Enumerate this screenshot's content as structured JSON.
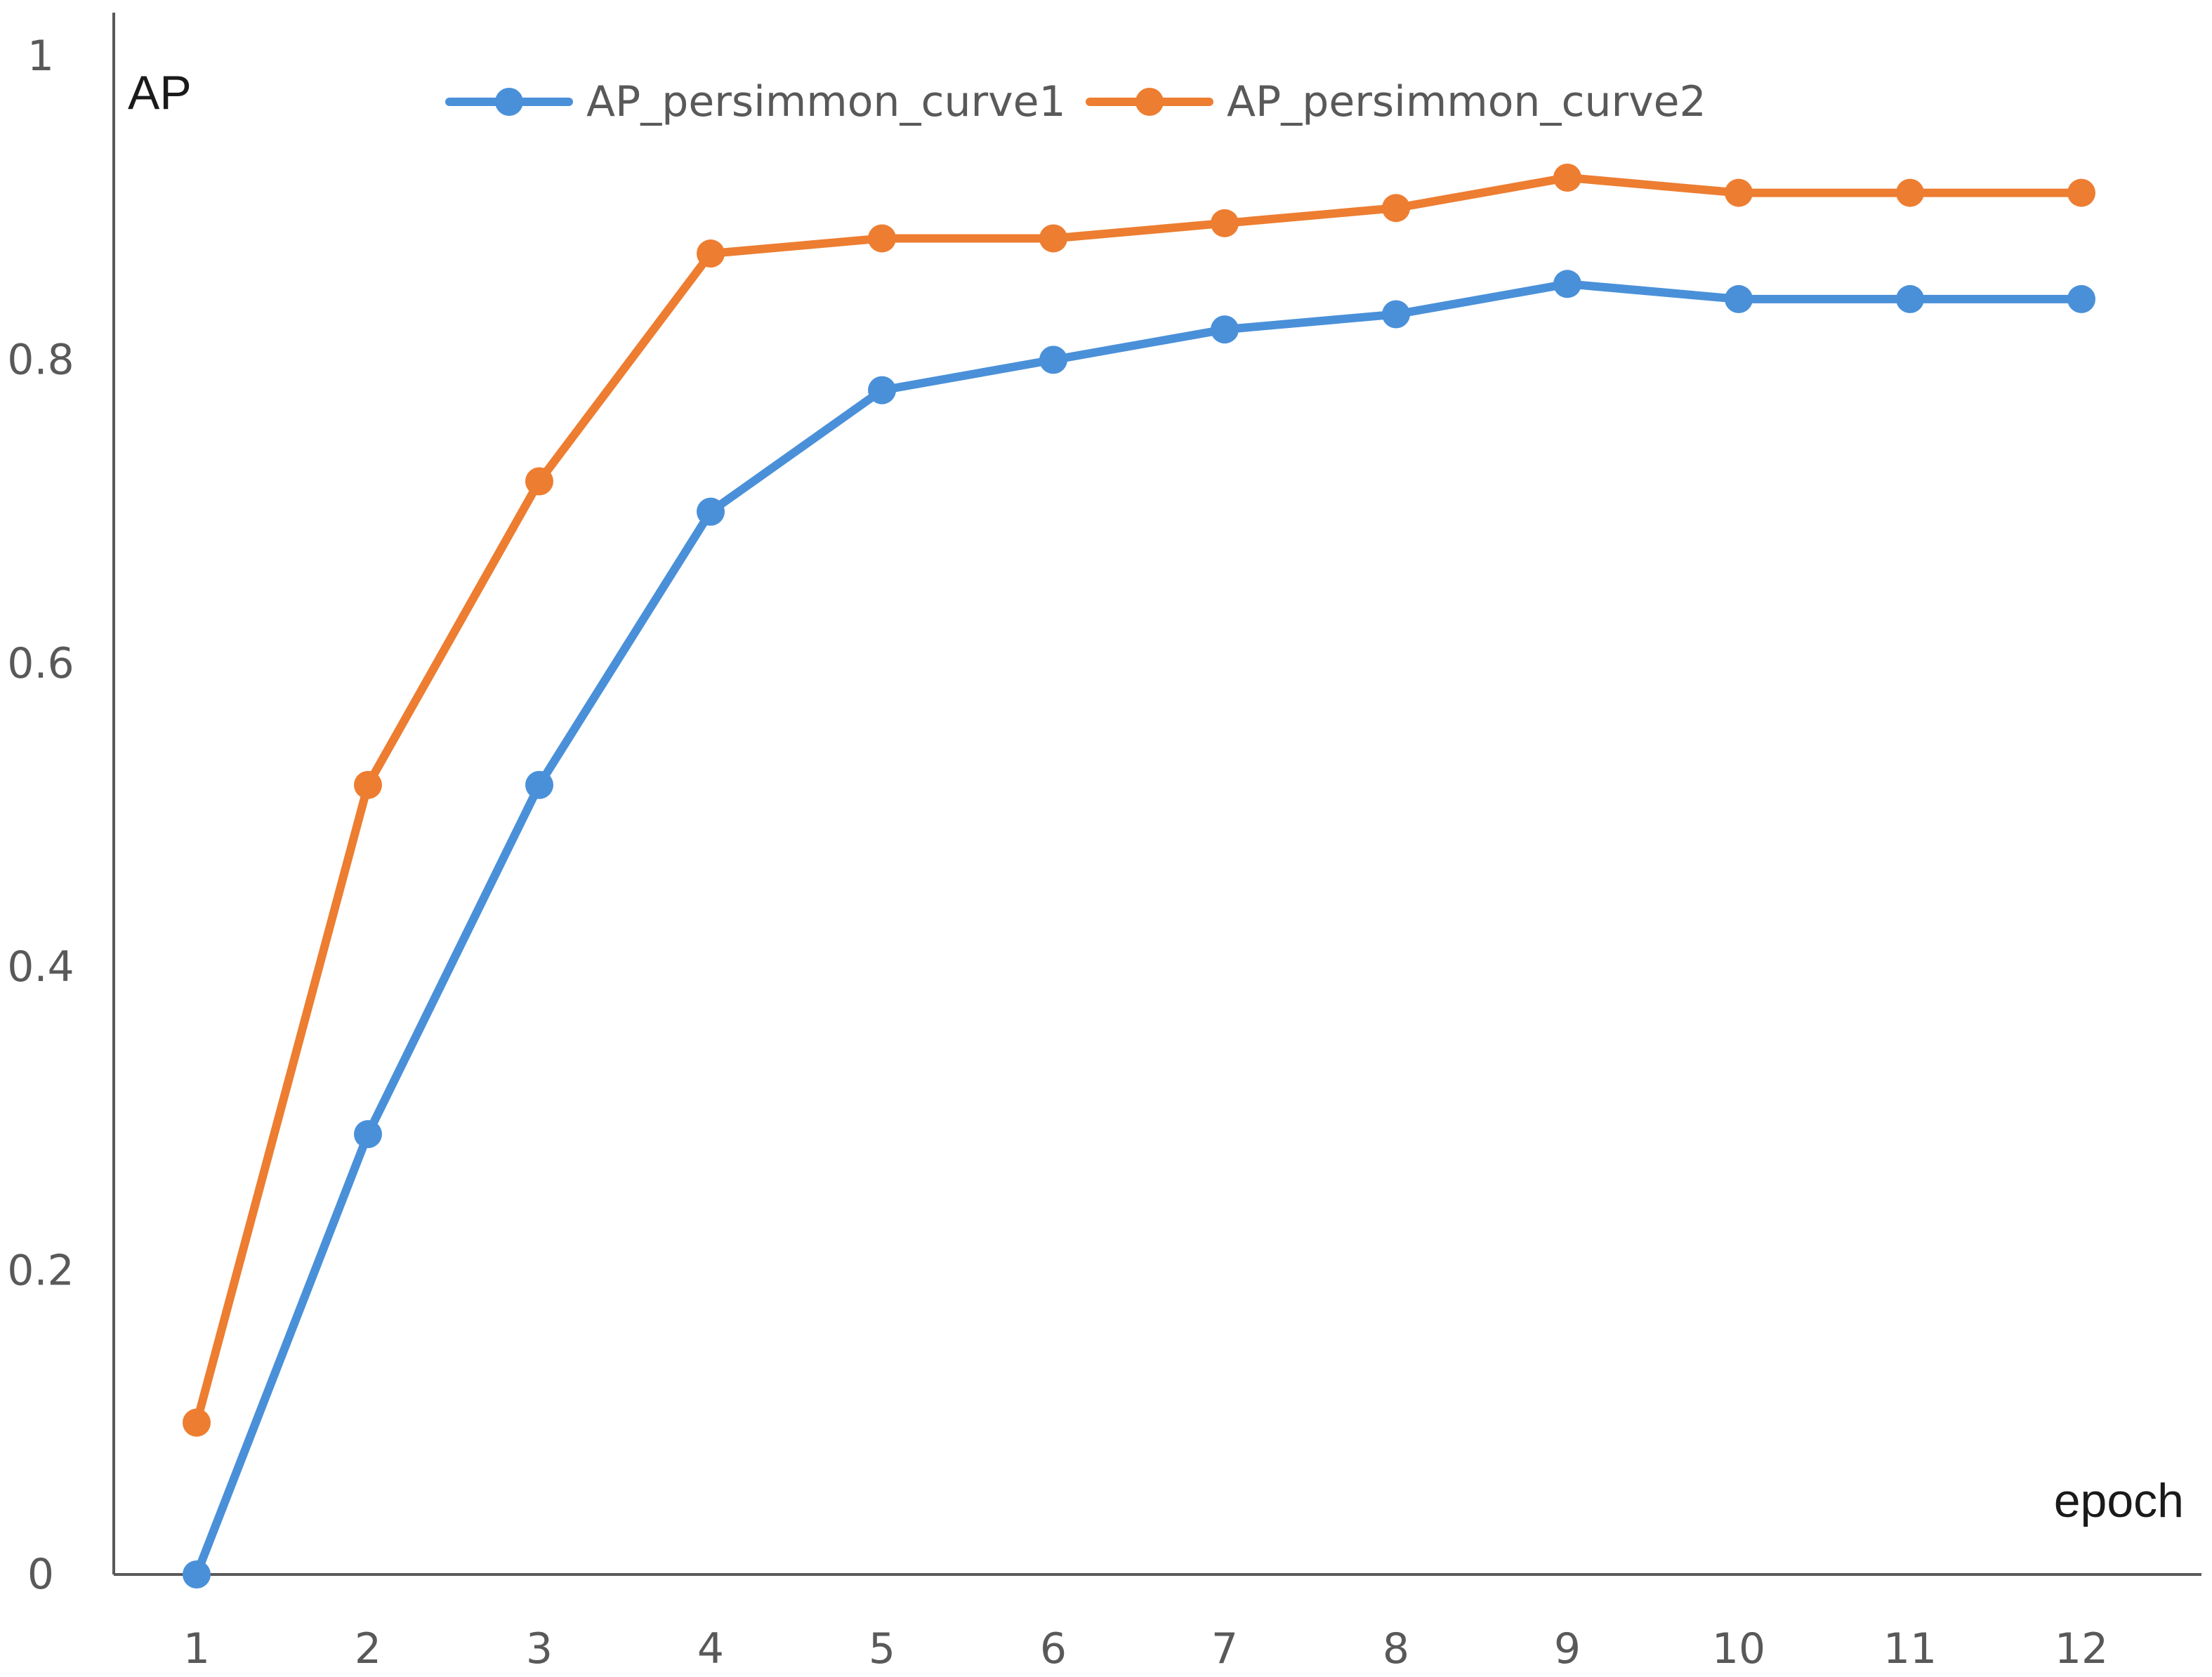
{
  "chart_data": {
    "type": "line",
    "ylabel": "AP",
    "xlabel": "epoch",
    "x": [
      1,
      2,
      3,
      4,
      5,
      6,
      7,
      8,
      9,
      10,
      11,
      12
    ],
    "x_tick_labels": [
      "1",
      "2",
      "3",
      "4",
      "5",
      "6",
      "7",
      "8",
      "9",
      "10",
      "11",
      "12"
    ],
    "y_tick_labels": [
      "0",
      "0.2",
      "0.4",
      "0.6",
      "0.8",
      "1"
    ],
    "y_ticks": [
      0,
      0.2,
      0.4,
      0.6,
      0.8,
      1
    ],
    "ylim": [
      0,
      1
    ],
    "grid": false,
    "legend_position": "top",
    "series": [
      {
        "name": "AP_persimmon_curve1",
        "color": "#4a90d9",
        "values": [
          0.0,
          0.29,
          0.52,
          0.7,
          0.78,
          0.8,
          0.82,
          0.83,
          0.85,
          0.84,
          0.84,
          0.84
        ]
      },
      {
        "name": "AP_persimmon_curve2",
        "color": "#ed7d31",
        "values": [
          0.1,
          0.52,
          0.72,
          0.87,
          0.88,
          0.88,
          0.89,
          0.9,
          0.92,
          0.91,
          0.91,
          0.91
        ]
      }
    ]
  }
}
